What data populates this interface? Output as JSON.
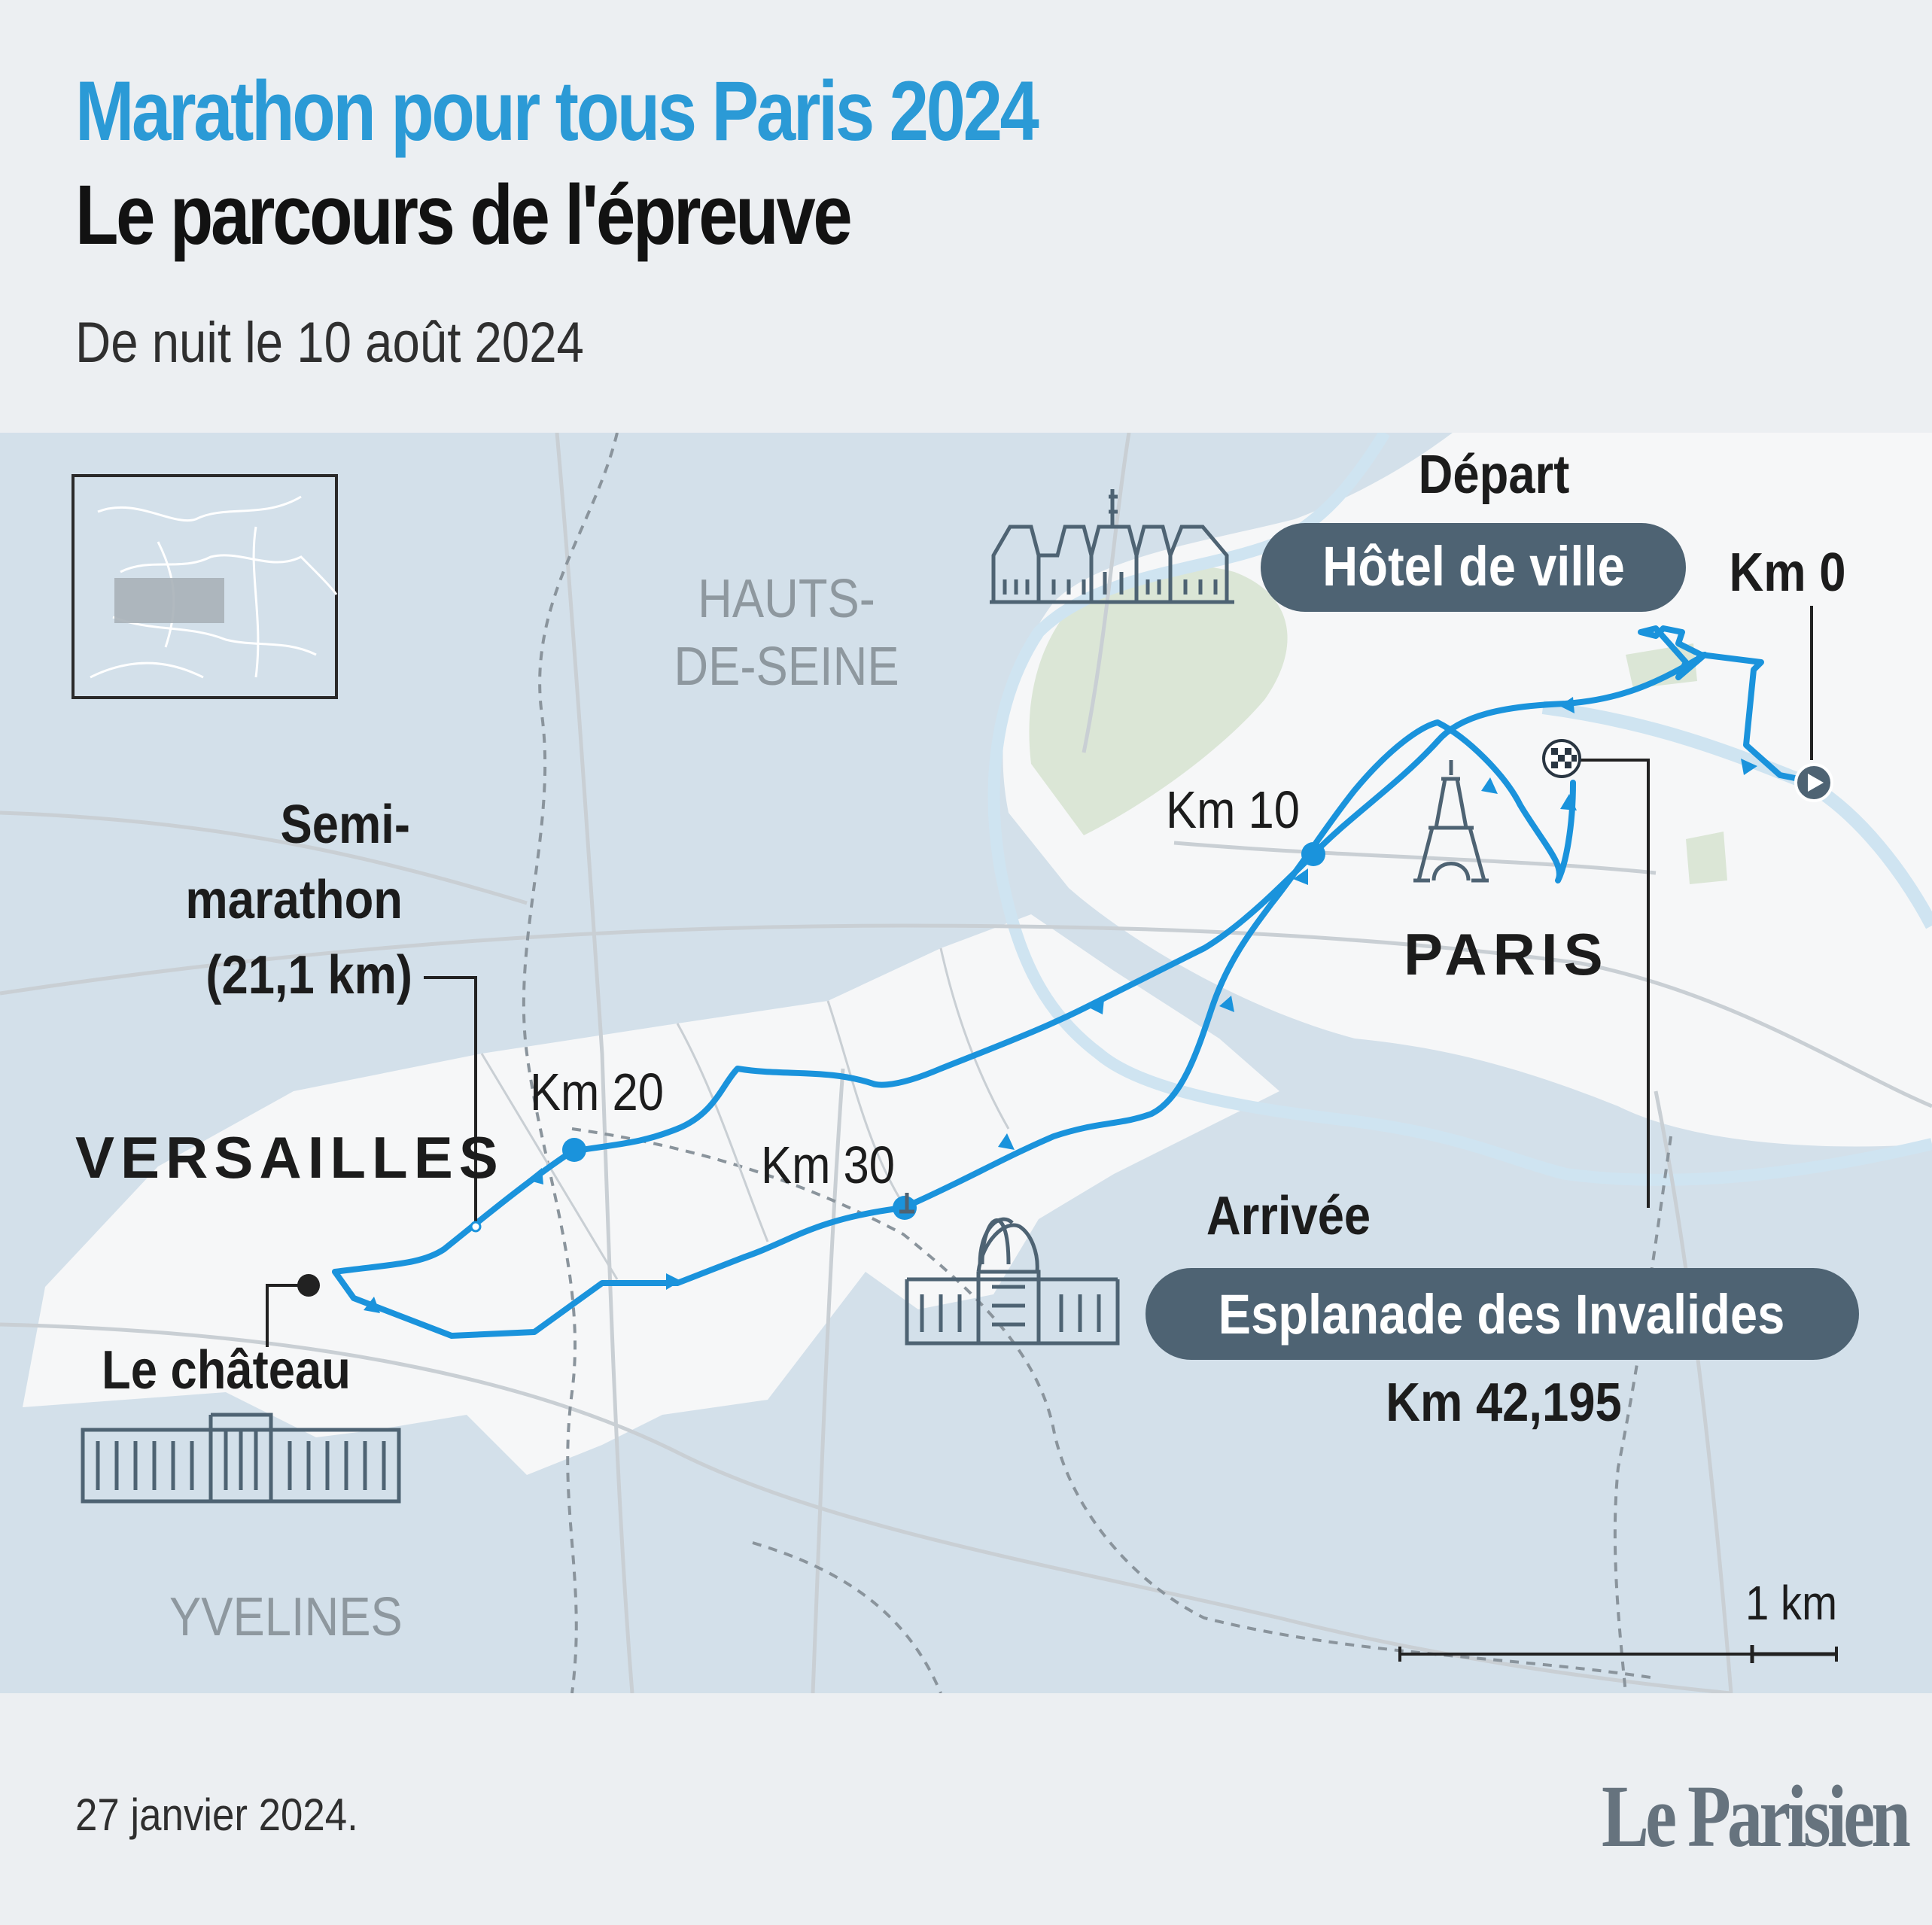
{
  "header": {
    "title": "Marathon pour tous Paris 2024",
    "subtitle": "Le parcours de l'épreuve",
    "date_line": "De nuit le 10 août 2024"
  },
  "colors": {
    "accent": "#2b9ad6",
    "route": "#1a93dc",
    "title_text": "#121212",
    "map_water_bg": "#d3e0ea",
    "map_land": "#f6f7f8",
    "park": "#dbe6d6",
    "pill_bg": "#4e6373",
    "brand": "#66737e"
  },
  "map": {
    "regions": {
      "hauts_de_seine_line1": "HAUTS-",
      "hauts_de_seine_line2": "DE-SEINE",
      "yvelines": "YVELINES",
      "paris": "PARIS",
      "versailles": "VERSAILLES"
    },
    "start": {
      "label": "Départ",
      "place": "Hôtel de ville",
      "km": "Km 0"
    },
    "finish": {
      "label": "Arrivée",
      "place": "Esplanade des Invalides",
      "km": "Km 42,195"
    },
    "checkpoints": {
      "km10": "Km 10",
      "km20": "Km 20",
      "km30": "Km 30"
    },
    "half_marathon": {
      "line1": "Semi-",
      "line2": "marathon",
      "line3": "(21,1 km)"
    },
    "chateau": "Le château",
    "scale": "1 km",
    "icons": [
      "hotel-de-ville-icon",
      "eiffel-tower-icon",
      "invalides-icon",
      "chateau-icon",
      "start-play-icon",
      "finish-flag-icon"
    ]
  },
  "footer": {
    "date": "27 janvier 2024.",
    "brand": "Le Parisien"
  }
}
